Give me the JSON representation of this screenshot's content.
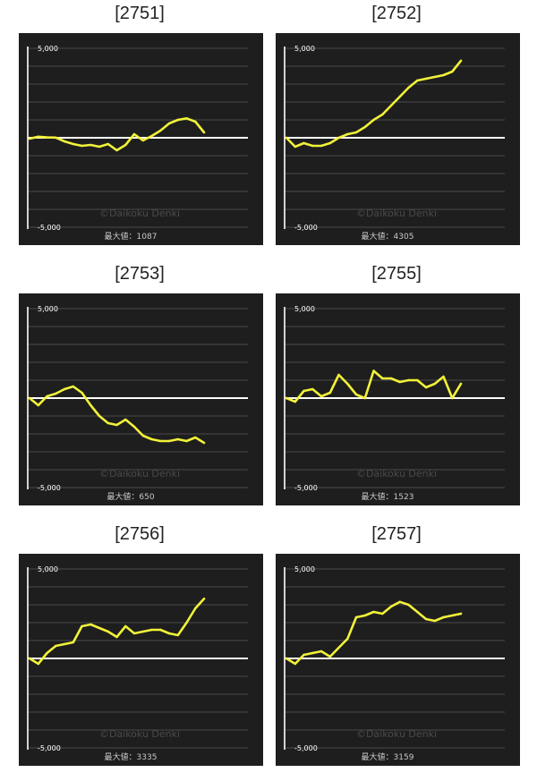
{
  "colors": {
    "panel_bg": "#1e1e1e",
    "grid": "#4a4a4a",
    "axis": "#ffffff",
    "zero_line": "#ffffff",
    "series": "#f2f23a",
    "watermark": "#4a4a4a"
  },
  "chart_data": [
    {
      "type": "line",
      "title": "[2751]",
      "ylim": [
        -5000,
        5000
      ],
      "y_ticks": [
        "5,000",
        "-5,000"
      ],
      "grid": true,
      "watermark": "©Daikoku Denki",
      "max_label": "最大値：1087",
      "series": [
        {
          "x": [
            0,
            5,
            10,
            15,
            20,
            25,
            30,
            35,
            40,
            45,
            50,
            55,
            60,
            65,
            70,
            75,
            80,
            85,
            90,
            95,
            100
          ],
          "y": [
            -50,
            60,
            20,
            10,
            -200,
            -350,
            -450,
            -400,
            -500,
            -350,
            -700,
            -400,
            200,
            -150,
            100,
            400,
            800,
            1000,
            1087,
            900,
            300
          ]
        }
      ]
    },
    {
      "type": "line",
      "title": "[2752]",
      "ylim": [
        -5000,
        5000
      ],
      "y_ticks": [
        "5,000",
        "-5,000"
      ],
      "grid": true,
      "watermark": "©Daikoku Denki",
      "max_label": "最大値：4305",
      "series": [
        {
          "x": [
            0,
            5,
            10,
            15,
            20,
            25,
            30,
            35,
            40,
            45,
            50,
            55,
            60,
            65,
            70,
            75,
            80,
            85,
            90,
            95,
            100
          ],
          "y": [
            0,
            -500,
            -300,
            -450,
            -450,
            -300,
            0,
            200,
            300,
            600,
            1000,
            1300,
            1800,
            2300,
            2800,
            3200,
            3300,
            3400,
            3500,
            3700,
            4305
          ]
        }
      ]
    },
    {
      "type": "line",
      "title": "[2753]",
      "ylim": [
        -5000,
        5000
      ],
      "y_ticks": [
        "5,000",
        "-5,000"
      ],
      "grid": true,
      "watermark": "©Daikoku Denki",
      "max_label": "最大値：650",
      "series": [
        {
          "x": [
            0,
            5,
            10,
            15,
            20,
            25,
            30,
            35,
            40,
            45,
            50,
            55,
            60,
            65,
            70,
            75,
            80,
            85,
            90,
            95,
            100
          ],
          "y": [
            0,
            -400,
            100,
            250,
            500,
            650,
            300,
            -400,
            -1000,
            -1400,
            -1500,
            -1200,
            -1600,
            -2100,
            -2300,
            -2400,
            -2400,
            -2300,
            -2400,
            -2200,
            -2500
          ]
        }
      ]
    },
    {
      "type": "line",
      "title": "[2755]",
      "ylim": [
        -5000,
        5000
      ],
      "y_ticks": [
        "5,000",
        "-5,000"
      ],
      "grid": true,
      "watermark": "©Daikoku Denki",
      "max_label": "最大値：1523",
      "series": [
        {
          "x": [
            0,
            5,
            10,
            15,
            20,
            25,
            30,
            35,
            40,
            45,
            50,
            55,
            60,
            65,
            70,
            75,
            80,
            85,
            90,
            95,
            100
          ],
          "y": [
            0,
            -200,
            400,
            500,
            100,
            300,
            1300,
            800,
            200,
            0,
            1523,
            1100,
            1100,
            900,
            1000,
            1000,
            600,
            800,
            1200,
            0,
            800
          ]
        }
      ]
    },
    {
      "type": "line",
      "title": "[2756]",
      "ylim": [
        -5000,
        5000
      ],
      "y_ticks": [
        "5,000",
        "-5,000"
      ],
      "grid": true,
      "watermark": "©Daikoku Denki",
      "max_label": "最大値：3335",
      "series": [
        {
          "x": [
            0,
            5,
            10,
            15,
            20,
            25,
            30,
            35,
            40,
            45,
            50,
            55,
            60,
            65,
            70,
            75,
            80,
            85,
            90,
            95,
            100
          ],
          "y": [
            0,
            -300,
            300,
            700,
            800,
            900,
            1800,
            1900,
            1700,
            1500,
            1200,
            1800,
            1400,
            1500,
            1600,
            1600,
            1400,
            1300,
            2000,
            2800,
            3335
          ]
        }
      ]
    },
    {
      "type": "line",
      "title": "[2757]",
      "ylim": [
        -5000,
        5000
      ],
      "y_ticks": [
        "5,000",
        "-5,000"
      ],
      "grid": true,
      "watermark": "©Daikoku Denki",
      "max_label": "最大値：3159",
      "series": [
        {
          "x": [
            0,
            5,
            10,
            15,
            20,
            25,
            30,
            35,
            40,
            45,
            50,
            55,
            60,
            65,
            70,
            75,
            80,
            85,
            90,
            95,
            100
          ],
          "y": [
            0,
            -300,
            200,
            300,
            400,
            100,
            600,
            1100,
            2300,
            2400,
            2600,
            2500,
            2900,
            3159,
            3000,
            2600,
            2200,
            2100,
            2300,
            2400,
            2500
          ]
        }
      ]
    }
  ]
}
